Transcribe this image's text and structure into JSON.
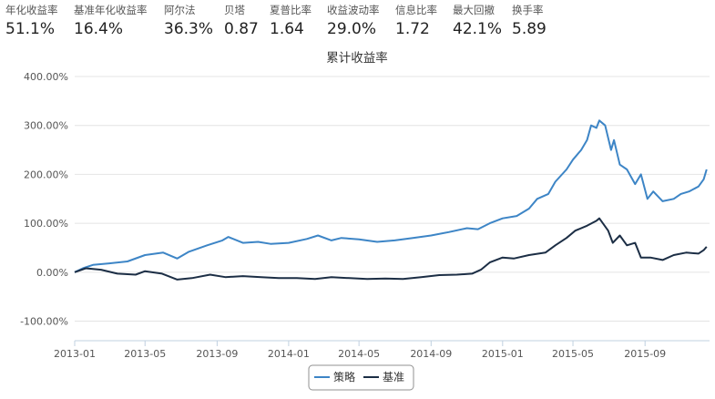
{
  "stats": [
    {
      "label": "年化收益率",
      "value": "51.1%"
    },
    {
      "label": "基准年化收益率",
      "value": "16.4%"
    },
    {
      "label": "阿尔法",
      "value": "36.3%"
    },
    {
      "label": "贝塔",
      "value": "0.87"
    },
    {
      "label": "夏普比率",
      "value": "1.64"
    },
    {
      "label": "收益波动率",
      "value": "29.0%"
    },
    {
      "label": "信息比率",
      "value": "1.72"
    },
    {
      "label": "最大回撤",
      "value": "42.1%"
    },
    {
      "label": "换手率",
      "value": "5.89"
    }
  ],
  "chart_data": {
    "type": "line",
    "title": "累计收益率",
    "xlabel": "",
    "ylabel": "",
    "ylim": [
      -140,
      400
    ],
    "yticks": [
      -100,
      0,
      100,
      200,
      300,
      400
    ],
    "ytick_labels": [
      "-100.00%",
      "0.00%",
      "100.00%",
      "200.00%",
      "300.00%",
      "400.00%"
    ],
    "xlim": [
      "2013-01-01",
      "2015-12-20"
    ],
    "xticks": [
      "2013-01-01",
      "2013-05-01",
      "2013-09-01",
      "2014-01-01",
      "2014-05-01",
      "2014-09-01",
      "2015-01-01",
      "2015-05-01",
      "2015-09-01"
    ],
    "xtick_labels": [
      "2013-01",
      "2013-05",
      "2013-09",
      "2014-01",
      "2014-05",
      "2014-09",
      "2015-01",
      "2015-05",
      "2015-09"
    ],
    "grid": "horizontal",
    "legend": "bottom-center",
    "series": [
      {
        "name": "策略",
        "color": "#3d85c6",
        "x": [
          "2013-01-01",
          "2013-01-15",
          "2013-02-01",
          "2013-03-01",
          "2013-04-01",
          "2013-05-01",
          "2013-06-01",
          "2013-06-25",
          "2013-07-15",
          "2013-08-15",
          "2013-09-10",
          "2013-09-20",
          "2013-10-15",
          "2013-11-10",
          "2013-12-01",
          "2014-01-01",
          "2014-02-01",
          "2014-02-20",
          "2014-03-15",
          "2014-04-01",
          "2014-05-01",
          "2014-06-01",
          "2014-07-01",
          "2014-08-01",
          "2014-09-01",
          "2014-10-01",
          "2014-11-01",
          "2014-11-20",
          "2014-12-10",
          "2015-01-01",
          "2015-01-25",
          "2015-02-15",
          "2015-03-01",
          "2015-03-20",
          "2015-04-01",
          "2015-04-20",
          "2015-05-01",
          "2015-05-15",
          "2015-05-25",
          "2015-06-01",
          "2015-06-10",
          "2015-06-15",
          "2015-06-25",
          "2015-07-05",
          "2015-07-10",
          "2015-07-20",
          "2015-08-01",
          "2015-08-15",
          "2015-08-25",
          "2015-09-05",
          "2015-09-15",
          "2015-10-01",
          "2015-10-20",
          "2015-11-01",
          "2015-11-15",
          "2015-12-01",
          "2015-12-10",
          "2015-12-15"
        ],
        "values": [
          0,
          8,
          15,
          18,
          22,
          35,
          40,
          28,
          42,
          55,
          65,
          72,
          60,
          62,
          58,
          60,
          68,
          75,
          65,
          70,
          67,
          62,
          65,
          70,
          75,
          82,
          90,
          88,
          100,
          110,
          115,
          130,
          150,
          160,
          185,
          210,
          230,
          250,
          270,
          300,
          295,
          310,
          300,
          250,
          270,
          220,
          210,
          180,
          200,
          150,
          165,
          145,
          150,
          160,
          165,
          175,
          190,
          210
        ]
      },
      {
        "name": "基准",
        "color": "#1c2e45",
        "x": [
          "2013-01-01",
          "2013-01-20",
          "2013-02-15",
          "2013-03-15",
          "2013-04-15",
          "2013-05-01",
          "2013-05-30",
          "2013-06-25",
          "2013-07-20",
          "2013-08-20",
          "2013-09-15",
          "2013-10-15",
          "2013-11-15",
          "2013-12-15",
          "2014-01-15",
          "2014-02-15",
          "2014-03-15",
          "2014-04-15",
          "2014-05-15",
          "2014-06-15",
          "2014-07-15",
          "2014-08-15",
          "2014-09-15",
          "2014-10-15",
          "2014-11-10",
          "2014-11-25",
          "2014-12-10",
          "2015-01-01",
          "2015-01-20",
          "2015-02-15",
          "2015-03-15",
          "2015-04-01",
          "2015-04-20",
          "2015-05-05",
          "2015-05-25",
          "2015-06-10",
          "2015-06-15",
          "2015-06-30",
          "2015-07-08",
          "2015-07-20",
          "2015-08-01",
          "2015-08-15",
          "2015-08-25",
          "2015-09-10",
          "2015-10-01",
          "2015-10-20",
          "2015-11-10",
          "2015-12-01",
          "2015-12-10",
          "2015-12-15"
        ],
        "values": [
          0,
          8,
          5,
          -3,
          -5,
          2,
          -3,
          -15,
          -12,
          -5,
          -10,
          -8,
          -10,
          -12,
          -12,
          -14,
          -10,
          -12,
          -14,
          -13,
          -14,
          -10,
          -6,
          -5,
          -3,
          5,
          20,
          30,
          28,
          35,
          40,
          55,
          70,
          85,
          95,
          105,
          110,
          85,
          60,
          75,
          55,
          60,
          30,
          30,
          25,
          35,
          40,
          38,
          45,
          52
        ]
      }
    ]
  }
}
